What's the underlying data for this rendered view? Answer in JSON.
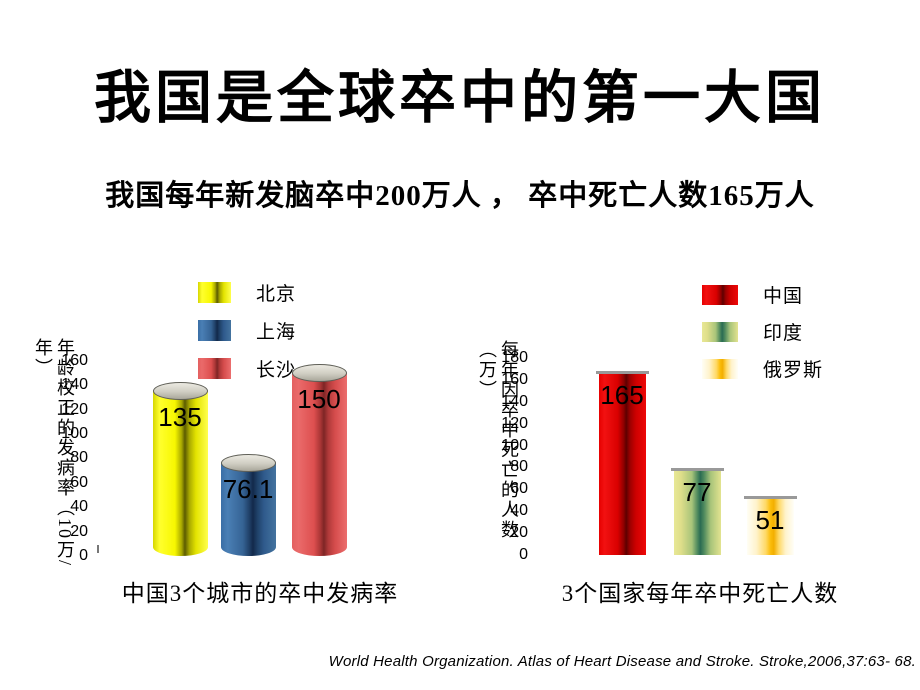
{
  "slide": {
    "title": "我国是全球卒中的第一大国",
    "subtitle": "我国每年新发脑卒中200万人 ， 卒中死亡人数165万人",
    "footer": "World Health Organization. Atlas of Heart Disease and Stroke. Stroke,2006,37:63- 68."
  },
  "chart_data": [
    {
      "type": "bar",
      "title": "中国3个城市的卒中发病率",
      "ylabel": "年龄校正的发病率（10万/年）",
      "xlabel": "",
      "categories": [
        "北京",
        "上海",
        "长沙"
      ],
      "values": [
        135,
        76.1,
        150
      ],
      "value_labels": [
        "135",
        "76.1",
        "150"
      ],
      "colors": [
        "#ffff00",
        "#336699",
        "#dd5555"
      ],
      "ylim": [
        0,
        160
      ],
      "yticks": [
        0,
        20,
        40,
        60,
        80,
        100,
        120,
        140,
        160
      ],
      "grid": false,
      "legend_position": "top",
      "bar_style": "cylinder"
    },
    {
      "type": "bar",
      "title": "3个国家每年卒中死亡人数",
      "ylabel": "每年因卒中死亡的人数（万）",
      "xlabel": "",
      "categories": [
        "中国",
        "印度",
        "俄罗斯"
      ],
      "values": [
        165,
        77,
        51
      ],
      "value_labels": [
        "165",
        "77",
        "51"
      ],
      "colors": [
        "#dd0000",
        "#9ccc7a",
        "#fbbf0d"
      ],
      "ylim": [
        0,
        180
      ],
      "yticks": [
        0,
        20,
        40,
        60,
        80,
        100,
        120,
        140,
        160,
        180
      ],
      "grid": false,
      "legend_position": "top",
      "bar_style": "flat-top"
    }
  ]
}
